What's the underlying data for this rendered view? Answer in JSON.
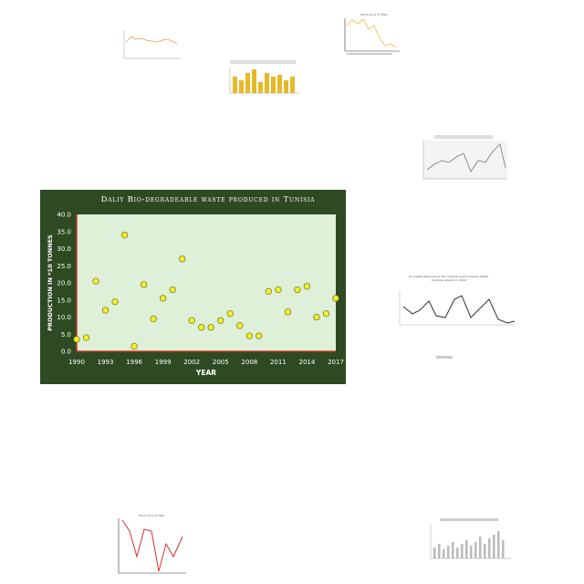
{
  "main_chart": {
    "title": "Daliy Bio-degradeable waste produced in Tunisia",
    "xlabel": "YEAR",
    "ylabel": "PRODUCTION IN *10 TONNES",
    "x_ticks": [
      "1990",
      "1993",
      "1996",
      "1999",
      "2002",
      "2005",
      "2008",
      "2011",
      "2014",
      "2017"
    ],
    "y_ticks": [
      "0.0",
      "5.0",
      "10.0",
      "15.0",
      "20.0",
      "25.0",
      "30.0",
      "35.0",
      "40.0"
    ],
    "colors": {
      "frame": "#2e4a22",
      "plot_bg": "#dff0d8",
      "axis": "#c0392b",
      "marker": "#f0f02a",
      "marker_edge": "#6e6e20",
      "text": "#ffffff"
    }
  },
  "chart_data": [
    {
      "type": "scatter",
      "title": "Daliy Bio-degradeable waste produced in Tunisia",
      "xlabel": "YEAR",
      "ylabel": "PRODUCTION IN *10 TONNES",
      "xlim": [
        1990,
        2017
      ],
      "ylim": [
        0,
        40
      ],
      "grid": false,
      "x": [
        1990,
        1991,
        1992,
        1993,
        1994,
        1995,
        1996,
        1997,
        1998,
        1999,
        2000,
        2001,
        2002,
        2003,
        2004,
        2005,
        2006,
        2007,
        2008,
        2009,
        2010,
        2011,
        2012,
        2013,
        2014,
        2015,
        2016,
        2017
      ],
      "y": [
        3.5,
        4.0,
        20.5,
        12.0,
        14.5,
        34.0,
        1.5,
        19.5,
        9.5,
        15.5,
        18.0,
        27.0,
        9.0,
        7.0,
        7.0,
        9.0,
        11.0,
        7.5,
        4.5,
        4.5,
        17.5,
        18.0,
        11.5,
        18.0,
        19.0,
        10.0,
        11.0,
        15.5
      ]
    }
  ],
  "thumbnails": [
    {
      "id": "t1",
      "title": ""
    },
    {
      "id": "t2",
      "title": "Stock price of CELG"
    },
    {
      "id": "t3",
      "title": ""
    },
    {
      "id": "t4",
      "title": ""
    },
    {
      "id": "t5",
      "title": "Air quality Measures on the national environmental health tracking network in 2004"
    },
    {
      "id": "t6",
      "title": "Stock price of HOG"
    },
    {
      "id": "t7",
      "title": ""
    }
  ]
}
